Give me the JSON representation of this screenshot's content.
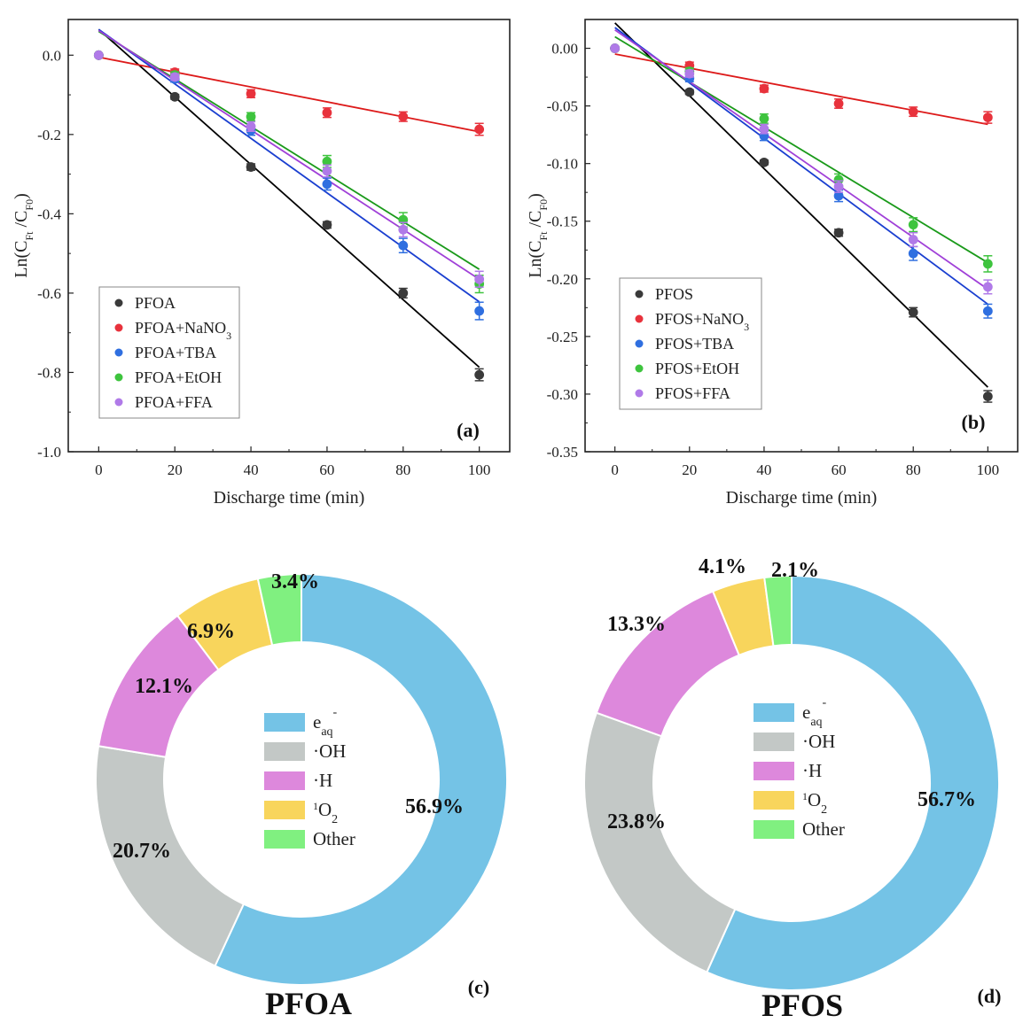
{
  "chart_data": [
    {
      "panel": "(a)",
      "type": "scatter",
      "xlabel": "Discharge time (min)",
      "ylabel": "Ln(C_Ft/C_F0)",
      "xlim": [
        -8,
        108
      ],
      "ylim": [
        -1.0,
        0.09
      ],
      "xticks": [
        0,
        20,
        40,
        60,
        80,
        100
      ],
      "yticks": [
        0.0,
        -0.2,
        -0.4,
        -0.6,
        -0.8,
        -1.0
      ],
      "ytick_labels": [
        "0.0",
        "-0.2",
        "-0.4",
        "-0.6",
        "-0.8",
        "-1.0"
      ],
      "legend_position": "bottom-left",
      "x": [
        0,
        20,
        40,
        60,
        80,
        100
      ],
      "series": [
        {
          "name": "PFOA",
          "sub": "",
          "color": "#3a3a3a",
          "line_color": "#000000",
          "values": [
            0,
            -0.105,
            -0.282,
            -0.428,
            -0.6,
            -0.806
          ],
          "errors": [
            0,
            0.006,
            0.008,
            0.008,
            0.012,
            0.015
          ],
          "fit": [
            0.065,
            -0.787
          ]
        },
        {
          "name": "PFOA+NaNO",
          "sub": "3",
          "color": "#e8323c",
          "line_color": "#dd1a1a",
          "values": [
            0,
            -0.043,
            -0.097,
            -0.145,
            -0.155,
            -0.187
          ],
          "errors": [
            0,
            0.008,
            0.01,
            0.012,
            0.012,
            0.015
          ],
          "fit": [
            -0.005,
            -0.193
          ]
        },
        {
          "name": "PFOA+TBA",
          "sub": "",
          "color": "#2f6fe0",
          "line_color": "#1a3fd0",
          "values": [
            0,
            -0.06,
            -0.19,
            -0.325,
            -0.48,
            -0.645
          ],
          "errors": [
            0,
            0.008,
            0.012,
            0.015,
            0.018,
            0.022
          ],
          "fit": [
            0.065,
            -0.622
          ]
        },
        {
          "name": "PFOA+EtOH",
          "sub": "",
          "color": "#3ec43e",
          "line_color": "#1a9a1a",
          "values": [
            0,
            -0.05,
            -0.155,
            -0.268,
            -0.415,
            -0.577
          ],
          "errors": [
            0,
            0.008,
            0.01,
            0.015,
            0.018,
            0.022
          ],
          "fit": [
            0.06,
            -0.54
          ]
        },
        {
          "name": "PFOA+FFA",
          "sub": "",
          "color": "#b07ae8",
          "line_color": "#a040d8",
          "values": [
            0,
            -0.055,
            -0.18,
            -0.292,
            -0.44,
            -0.565
          ],
          "errors": [
            0,
            0.008,
            0.012,
            0.015,
            0.018,
            0.02
          ],
          "fit": [
            0.062,
            -0.565
          ]
        }
      ]
    },
    {
      "panel": "(b)",
      "type": "scatter",
      "xlabel": "Discharge time (min)",
      "ylabel": "Ln(C_Ft/C_F0)",
      "xlim": [
        -8,
        108
      ],
      "ylim": [
        -0.35,
        0.025
      ],
      "xticks": [
        0,
        20,
        40,
        60,
        80,
        100
      ],
      "yticks": [
        0.0,
        -0.05,
        -0.1,
        -0.15,
        -0.2,
        -0.25,
        -0.3,
        -0.35
      ],
      "ytick_labels": [
        "0.00",
        "-0.05",
        "-0.10",
        "-0.15",
        "-0.20",
        "-0.25",
        "-0.30",
        "-0.35"
      ],
      "legend_position": "bottom-left",
      "x": [
        0,
        20,
        40,
        60,
        80,
        100
      ],
      "series": [
        {
          "name": "PFOS",
          "sub": "",
          "color": "#3a3a3a",
          "line_color": "#000000",
          "values": [
            0,
            -0.038,
            -0.099,
            -0.16,
            -0.229,
            -0.302
          ],
          "errors": [
            0,
            0.002,
            0.002,
            0.003,
            0.004,
            0.005
          ],
          "fit": [
            0.022,
            -0.294
          ]
        },
        {
          "name": "PFOS+NaNO",
          "sub": "3",
          "color": "#e8323c",
          "line_color": "#dd1a1a",
          "values": [
            0,
            -0.015,
            -0.035,
            -0.048,
            -0.055,
            -0.06
          ],
          "errors": [
            0,
            0.003,
            0.003,
            0.004,
            0.004,
            0.005
          ],
          "fit": [
            -0.005,
            -0.066
          ]
        },
        {
          "name": "PFOS+TBA",
          "sub": "",
          "color": "#2f6fe0",
          "line_color": "#1a3fd0",
          "values": [
            0,
            -0.026,
            -0.076,
            -0.128,
            -0.178,
            -0.228
          ],
          "errors": [
            0,
            0.003,
            0.004,
            0.005,
            0.006,
            0.006
          ],
          "fit": [
            0.018,
            -0.222
          ]
        },
        {
          "name": "PFOS+EtOH",
          "sub": "",
          "color": "#3ec43e",
          "line_color": "#1a9a1a",
          "values": [
            0,
            -0.02,
            -0.061,
            -0.114,
            -0.153,
            -0.187
          ],
          "errors": [
            0,
            0.003,
            0.004,
            0.005,
            0.006,
            0.007
          ],
          "fit": [
            0.01,
            -0.186
          ]
        },
        {
          "name": "PFOS+FFA",
          "sub": "",
          "color": "#b07ae8",
          "line_color": "#a040d8",
          "values": [
            0,
            -0.022,
            -0.07,
            -0.12,
            -0.166,
            -0.207
          ],
          "errors": [
            0,
            0.003,
            0.004,
            0.005,
            0.006,
            0.006
          ],
          "fit": [
            0.016,
            -0.209
          ]
        }
      ]
    },
    {
      "panel": "(c)",
      "type": "pie",
      "title": "PFOA",
      "categories": [
        "e_aq^-",
        "·OH",
        "·H",
        "1O2",
        "Other"
      ],
      "values": [
        56.9,
        20.7,
        12.1,
        6.9,
        3.4
      ],
      "labels": [
        "56.9%",
        "20.7%",
        "12.1%",
        "6.9%",
        "3.4%"
      ],
      "legend_position": "center"
    },
    {
      "panel": "(d)",
      "type": "pie",
      "title": "PFOS",
      "categories": [
        "e_aq^-",
        "·OH",
        "·H",
        "1O2",
        "Other"
      ],
      "values": [
        56.7,
        23.8,
        13.3,
        4.1,
        2.1
      ],
      "labels": [
        "56.7%",
        "23.8%",
        "13.3%",
        "4.1%",
        "2.1%"
      ],
      "legend_position": "center"
    }
  ],
  "pie_colors": [
    "#74c3e6",
    "#c3c8c6",
    "#dd88dc",
    "#f8d55c",
    "#80f080"
  ],
  "pie_legend": [
    {
      "main": "e",
      "sub": "aq",
      "sup": "-"
    },
    {
      "main": "·OH",
      "sub": "",
      "sup": ""
    },
    {
      "main": "·H",
      "sub": "",
      "sup": ""
    },
    {
      "main": "O",
      "sub": "2",
      "sup_pre": "1"
    },
    {
      "main": "Other",
      "sub": "",
      "sup": ""
    }
  ],
  "ylabel_parts": {
    "prefix": "Ln(C",
    "sub1": "Ft",
    "mid": "/C",
    "sub2": "F0",
    "suffix": ")"
  }
}
